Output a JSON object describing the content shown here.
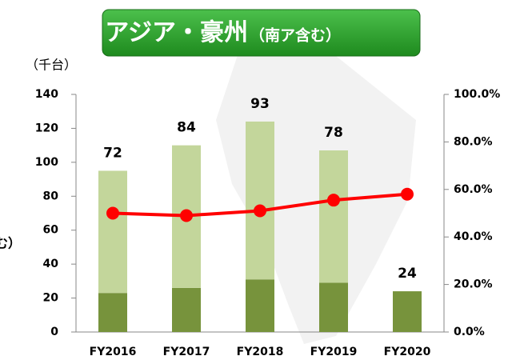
{
  "chart_data": {
    "type": "bar",
    "title": "アジア・豪州",
    "subtitle": "（南ア含む）",
    "unit_label": "（千台）",
    "left_label": "む）",
    "categories": [
      "FY2016",
      "FY2017",
      "FY2018",
      "FY2019",
      "FY2020"
    ],
    "stacked": true,
    "series": [
      {
        "color": "#77933c",
        "values": [
          23,
          26,
          31,
          29,
          24
        ]
      },
      {
        "color": "#c3d69b",
        "values": [
          72,
          84,
          93,
          78,
          null
        ]
      },
      {
        "type": "line",
        "axis": "y2",
        "color": "#ff0000",
        "values": [
          50.0,
          49.0,
          51.0,
          55.5,
          58.0
        ]
      }
    ],
    "ylim": [
      0,
      140
    ],
    "yticks": [
      0,
      20,
      40,
      60,
      80,
      100,
      120,
      140
    ],
    "y2lim": [
      0,
      100
    ],
    "y2ticks": [
      {
        "value": 0,
        "label": "0.0%"
      },
      {
        "value": 20,
        "label": "20.0%"
      },
      {
        "value": 40,
        "label": "40.0%"
      },
      {
        "value": 60,
        "label": "60.0%"
      },
      {
        "value": 80,
        "label": "80.0%"
      },
      {
        "value": 100,
        "label": "100.0%"
      }
    ]
  }
}
